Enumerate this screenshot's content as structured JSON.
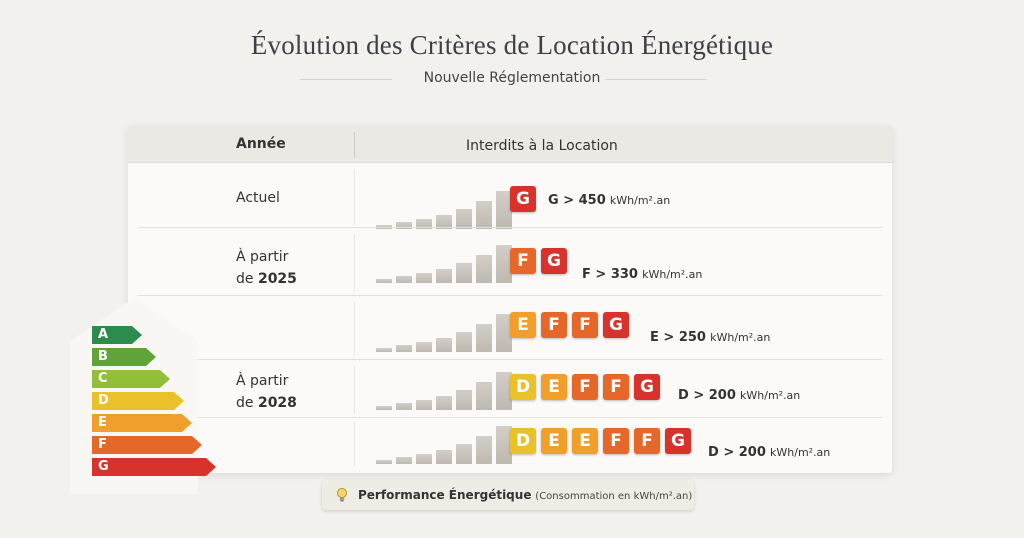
{
  "title": "Évolution des Critères de Location Énergétique",
  "subtitle": "Nouvelle Réglementation",
  "table": {
    "col_year": "Année",
    "col_banned": "Interdits à la Location",
    "rows": [
      {
        "label_line1": "Actuel",
        "label_line2": "",
        "label_bold": "",
        "grades": [
          "G"
        ],
        "threshold_prefix": "G > 450",
        "threshold_unit": "kWh/m².an"
      },
      {
        "label_line1": "À partir",
        "label_line2": "de",
        "label_bold": "2025",
        "grades": [
          "F",
          "G"
        ],
        "threshold_prefix": "F > 330",
        "threshold_unit": "kWh/m².an"
      },
      {
        "label_line1": "",
        "label_line2": "",
        "label_bold": "",
        "grades": [
          "E",
          "F",
          "F",
          "G"
        ],
        "threshold_prefix": "E > 250",
        "threshold_unit": "kWh/m².an"
      },
      {
        "label_line1": "À partir",
        "label_line2": "de",
        "label_bold": "2028",
        "grades": [
          "D",
          "E",
          "F",
          "F",
          "G"
        ],
        "threshold_prefix": "D > 200",
        "threshold_unit": "kWh/m².an"
      },
      {
        "label_line1": "",
        "label_line2": "",
        "label_bold": "",
        "grades": [
          "D",
          "E",
          "E",
          "F",
          "F",
          "G"
        ],
        "threshold_prefix": "D > 200",
        "threshold_unit": "kWh/m².an"
      }
    ]
  },
  "scale": [
    "A",
    "B",
    "C",
    "D",
    "E",
    "F",
    "G"
  ],
  "colors": {
    "A": "#2e8b4e",
    "B": "#5fa33a",
    "C": "#93be3a",
    "D": "#e9c12a",
    "E": "#f0a02a",
    "F": "#e5682a",
    "G": "#d7322c"
  },
  "legend": {
    "icon": "lightbulb-icon",
    "label_bold": "Performance Énergétique",
    "label_small": "(Consommation en kWh/m².an)"
  }
}
